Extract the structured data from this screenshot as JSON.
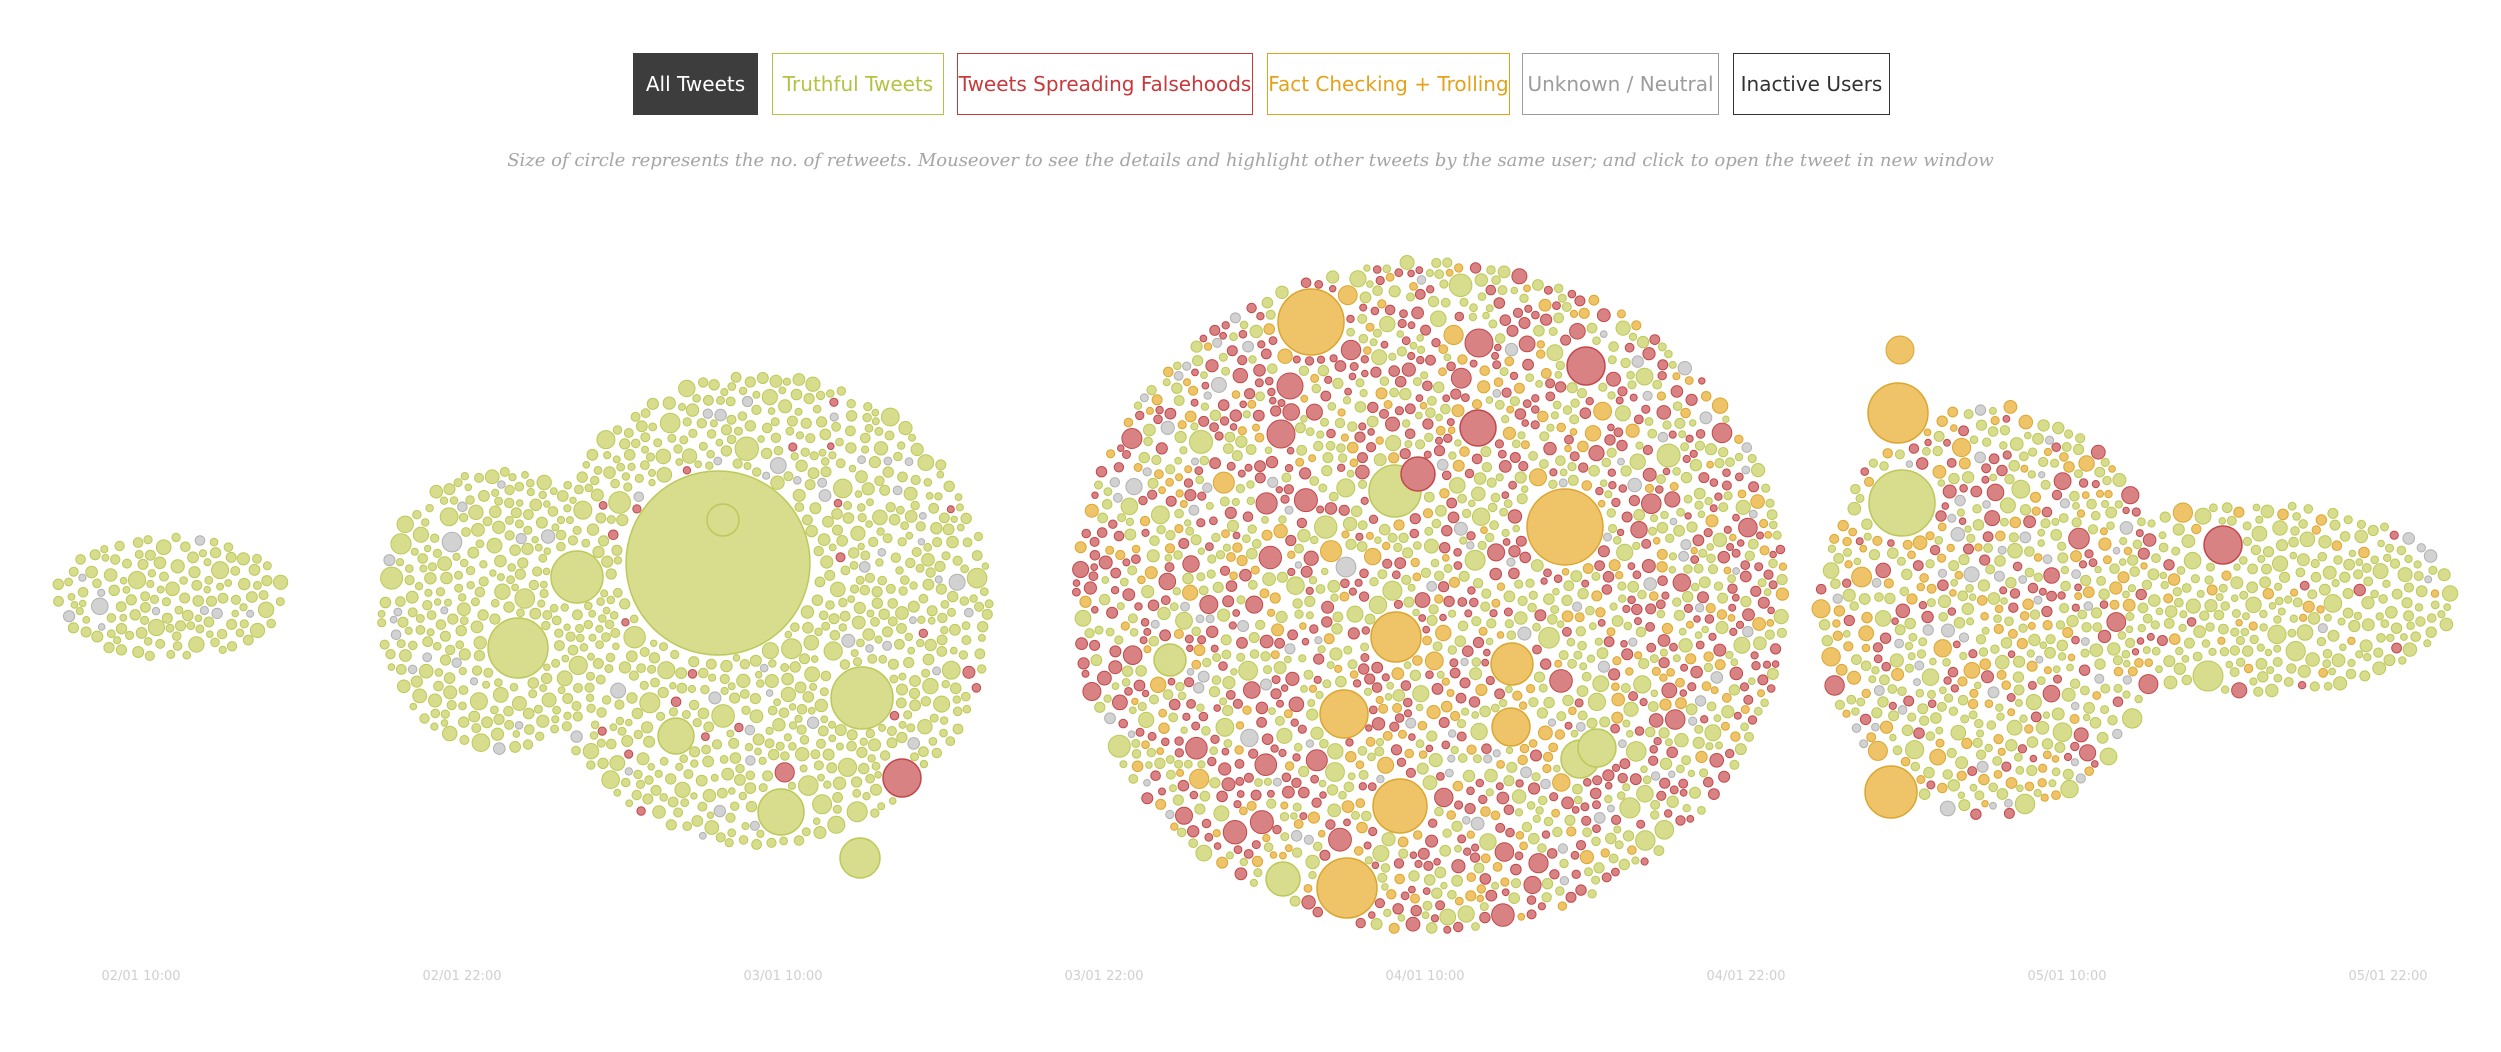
{
  "filters": [
    {
      "label": "All Tweets",
      "active": true,
      "color": "#3d3d3d"
    },
    {
      "label": "Truthful Tweets",
      "active": false,
      "color": "#b5c244"
    },
    {
      "label": "Tweets Spreading Falsehoods",
      "active": false,
      "color": "#c8393b"
    },
    {
      "label": "Fact Checking + Trolling",
      "active": false,
      "color": "#e4a21c"
    },
    {
      "label": "Unknown / Neutral",
      "active": false,
      "color": "#9c9c9c"
    },
    {
      "label": "Inactive Users",
      "active": false,
      "color": "#333333"
    }
  ],
  "caption": "Size of circle represents the no. of retweets. Mouseover to see the details and highlight other tweets by the same user; and click to open the tweet in new window",
  "chart_data": {
    "type": "scatter",
    "chart_kind": "beeswarm",
    "x_ticks": [
      "02/01 10:00",
      "02/01 22:00",
      "03/01 10:00",
      "03/01 22:00",
      "04/01 10:00",
      "04/01 22:00",
      "05/01 10:00",
      "05/01 22:00"
    ],
    "x_range": [
      "02/01 06:00",
      "05/02 05:00"
    ],
    "categories": [
      "Truthful Tweets",
      "Tweets Spreading Falsehoods",
      "Fact Checking + Trolling",
      "Unknown / Neutral"
    ],
    "colors": {
      "Truthful Tweets": {
        "fill": "#d7dd8c",
        "stroke": "#bdc85a"
      },
      "Tweets Spreading Falsehoods": {
        "fill": "#d98283",
        "stroke": "#c1484a"
      },
      "Fact Checking + Trolling": {
        "fill": "#efc368",
        "stroke": "#dba630"
      },
      "Unknown / Neutral": {
        "fill": "#d2d2d2",
        "stroke": "#b1b1b1"
      }
    },
    "clusters": [
      {
        "time": "02/01 11:00",
        "truthful": 0.93,
        "falsehoods": 0.0,
        "factcheck": 0.0,
        "neutral": 0.07
      },
      {
        "time": "02/01 22:00",
        "truthful": 0.95,
        "falsehoods": 0.0,
        "factcheck": 0.0,
        "neutral": 0.05
      },
      {
        "time": "03/01 10:00",
        "truthful": 0.9,
        "falsehoods": 0.04,
        "factcheck": 0.0,
        "neutral": 0.06
      },
      {
        "time": "04/01 10:00",
        "truthful": 0.42,
        "falsehoods": 0.36,
        "factcheck": 0.17,
        "neutral": 0.05
      },
      {
        "time": "05/01 10:00",
        "truthful": 0.45,
        "falsehoods": 0.22,
        "factcheck": 0.23,
        "neutral": 0.1
      },
      {
        "time": "05/01 20:00",
        "truthful": 0.82,
        "falsehoods": 0.04,
        "factcheck": 0.1,
        "neutral": 0.04
      }
    ],
    "notable_retweets": [
      {
        "time": "03/01 08:30",
        "category": "Truthful Tweets",
        "relative_size": 1.0
      },
      {
        "time": "04/01 06:00",
        "category": "Tweets Spreading Falsehoods",
        "relative_size": 0.38
      },
      {
        "time": "04/01 16:00",
        "category": "Fact Checking + Trolling",
        "relative_size": 0.43
      },
      {
        "time": "04/01 10:00",
        "category": "Truthful Tweets",
        "relative_size": 0.35
      },
      {
        "time": "05/01 06:00",
        "category": "Fact Checking + Trolling",
        "relative_size": 0.33
      },
      {
        "time": "05/01 06:00",
        "category": "Truthful Tweets",
        "relative_size": 0.35
      },
      {
        "time": "03/01 12:00",
        "category": "Truthful Tweets",
        "relative_size": 0.33
      }
    ]
  }
}
